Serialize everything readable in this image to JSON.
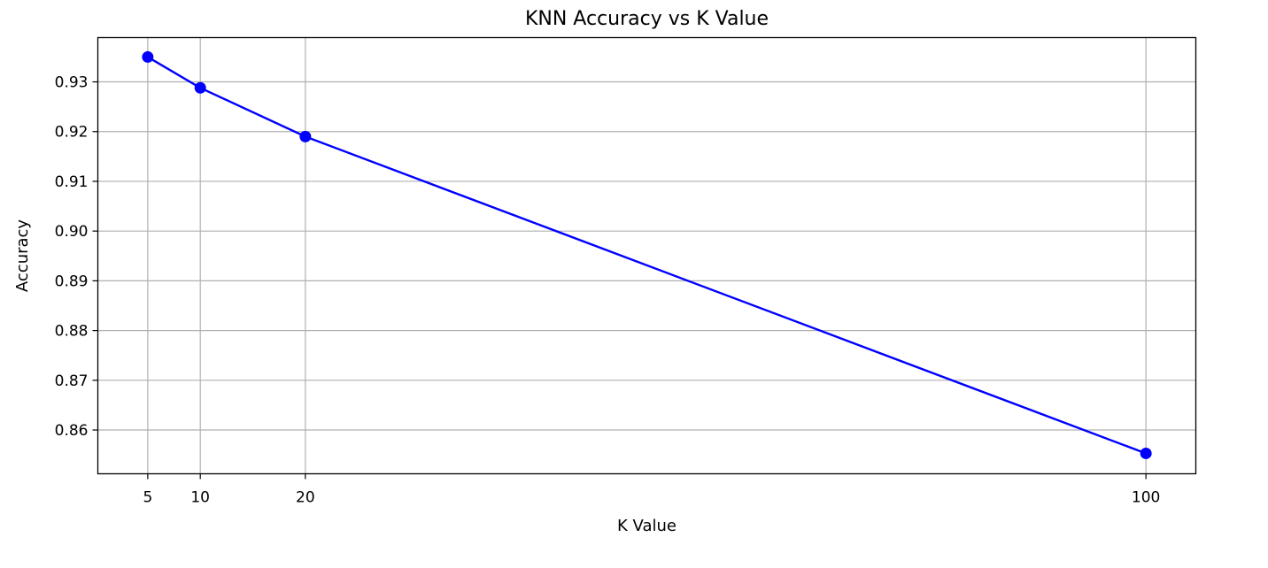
{
  "chart_data": {
    "type": "line",
    "title": "KNN Accuracy vs K Value",
    "xlabel": "K Value",
    "ylabel": "Accuracy",
    "x": [
      5,
      10,
      20,
      100
    ],
    "series": [
      {
        "values": [
          0.935,
          0.9288,
          0.919,
          0.8553
        ],
        "color": "#0000ff",
        "marker": "circle"
      }
    ],
    "xlim": [
      0.25,
      104.75
    ],
    "ylim": [
      0.8512,
      0.9389
    ],
    "xticks": [
      5,
      10,
      20,
      100
    ],
    "xtick_labels": [
      "5",
      "10",
      "20",
      "100"
    ],
    "yticks": [
      0.86,
      0.87,
      0.88,
      0.89,
      0.9,
      0.91,
      0.92,
      0.93
    ],
    "ytick_labels": [
      "0.86",
      "0.87",
      "0.88",
      "0.89",
      "0.90",
      "0.91",
      "0.92",
      "0.93"
    ],
    "grid": true,
    "legend": false
  }
}
